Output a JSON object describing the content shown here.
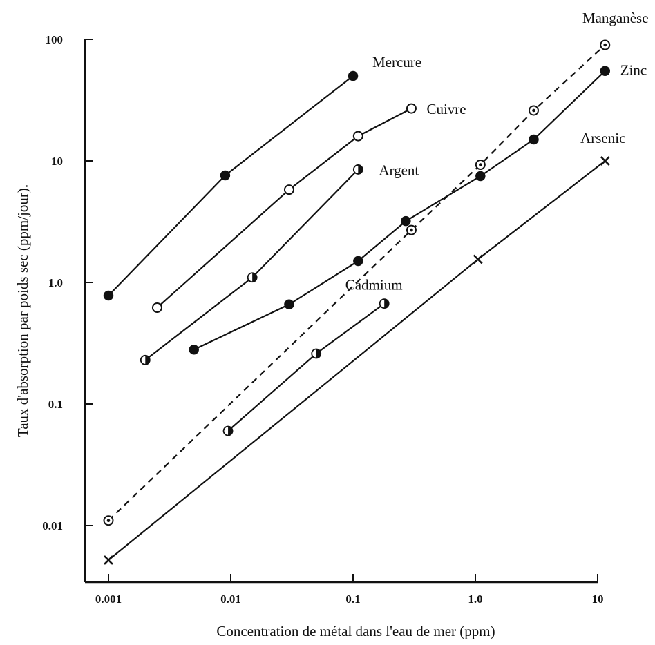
{
  "chart_data": {
    "type": "line",
    "title": "",
    "xlabel": "Concentration de métal dans l'eau de mer (ppm)",
    "ylabel": "Taux d'absorption par poids sec (ppm/jour).",
    "xscale": "log",
    "yscale": "log",
    "xlim": [
      0.001,
      10
    ],
    "ylim": [
      0.003,
      100
    ],
    "x_tick_labels": [
      "0.001",
      "0.01",
      "0.1",
      "1.0",
      "10"
    ],
    "x_tick_values": [
      0.001,
      0.01,
      0.1,
      1,
      10
    ],
    "y_tick_labels": [
      "0.01",
      "0.1",
      "1.0",
      "10",
      "100"
    ],
    "y_tick_values": [
      0.01,
      0.1,
      1,
      10,
      100
    ],
    "grid": false,
    "legend": "none",
    "series": [
      {
        "name": "Mercure",
        "marker": "filled-circle",
        "line": "solid",
        "points": [
          {
            "x": 0.001,
            "y": 0.78
          },
          {
            "x": 0.009,
            "y": 7.6
          },
          {
            "x": 0.1,
            "y": 50
          }
        ]
      },
      {
        "name": "Cuivre",
        "marker": "open-circle",
        "line": "solid",
        "points": [
          {
            "x": 0.0025,
            "y": 0.62
          },
          {
            "x": 0.03,
            "y": 5.8
          },
          {
            "x": 0.11,
            "y": 16
          },
          {
            "x": 0.3,
            "y": 27
          }
        ]
      },
      {
        "name": "Argent",
        "marker": "half-filled-circle",
        "line": "solid",
        "points": [
          {
            "x": 0.002,
            "y": 0.23
          },
          {
            "x": 0.015,
            "y": 1.1
          },
          {
            "x": 0.11,
            "y": 8.5
          }
        ]
      },
      {
        "name": "Zinc",
        "marker": "filled-circle",
        "line": "solid",
        "points": [
          {
            "x": 0.005,
            "y": 0.28
          },
          {
            "x": 0.03,
            "y": 0.66
          },
          {
            "x": 0.11,
            "y": 1.5
          },
          {
            "x": 0.27,
            "y": 3.2
          },
          {
            "x": 1.1,
            "y": 7.5
          },
          {
            "x": 3.0,
            "y": 15
          },
          {
            "x": 11.5,
            "y": 55
          }
        ]
      },
      {
        "name": "Manganèse",
        "marker": "dotted-circle",
        "line": "dashed",
        "points": [
          {
            "x": 0.001,
            "y": 0.011
          },
          {
            "x": 0.3,
            "y": 2.7
          },
          {
            "x": 1.1,
            "y": 9.3
          },
          {
            "x": 3.0,
            "y": 26
          },
          {
            "x": 11.5,
            "y": 90
          }
        ]
      },
      {
        "name": "Cadmium",
        "marker": "half-filled-circle",
        "line": "solid",
        "points": [
          {
            "x": 0.0095,
            "y": 0.06
          },
          {
            "x": 0.05,
            "y": 0.26
          },
          {
            "x": 0.18,
            "y": 0.67
          }
        ]
      },
      {
        "name": "Arsenic",
        "marker": "cross",
        "line": "solid",
        "points": [
          {
            "x": 0.001,
            "y": 0.0052
          },
          {
            "x": 1.05,
            "y": 1.55
          },
          {
            "x": 11.5,
            "y": 10
          }
        ]
      }
    ]
  }
}
